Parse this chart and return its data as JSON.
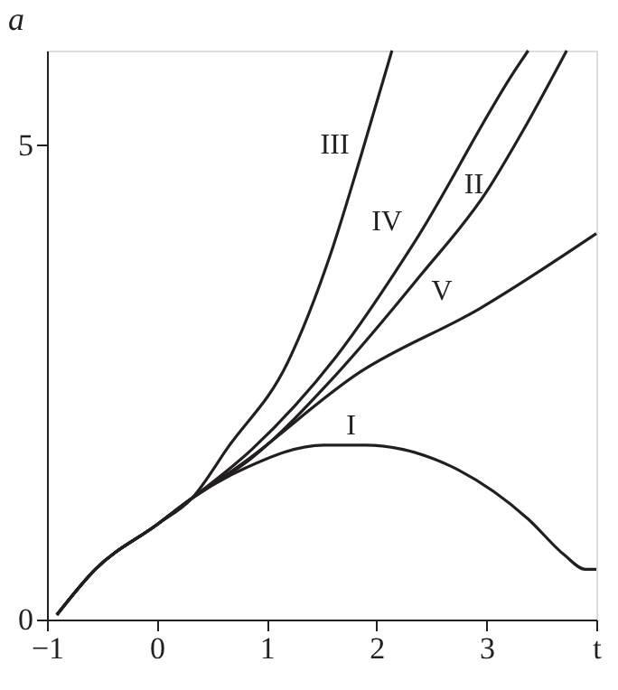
{
  "chart_data": {
    "type": "line",
    "ylabel": "a",
    "xlim": [
      -1,
      4
    ],
    "ylim": [
      0,
      6
    ],
    "xticks": [
      -1,
      0,
      1,
      2,
      3,
      {
        "value": 4,
        "label": "t"
      }
    ],
    "yticks": [
      0,
      5
    ],
    "grid": false,
    "line_style": "solid",
    "marker": "none",
    "series": [
      {
        "name": "I",
        "color": "#231f20",
        "x": [
          -0.91,
          -0.56,
          0,
          0.32,
          0.81,
          1.52,
          1.9,
          2.67,
          3.38,
          3.71,
          3.9,
          4.0
        ],
        "values": [
          0.05,
          0.53,
          1.0,
          1.28,
          1.6,
          1.84,
          1.84,
          1.62,
          1.06,
          0.68,
          0.53,
          0.53
        ]
      },
      {
        "name": "II",
        "color": "#231f20",
        "x": [
          -0.91,
          -0.56,
          0,
          0.32,
          0.86,
          1.63,
          2.4,
          3.0,
          3.33,
          3.73
        ],
        "values": [
          0.05,
          0.53,
          1.0,
          1.28,
          1.7,
          2.58,
          3.63,
          4.51,
          5.15,
          6.0
        ]
      },
      {
        "name": "III",
        "color": "#231f20",
        "x": [
          -0.91,
          -0.56,
          0,
          0.32,
          0.65,
          1.19,
          1.58,
          1.85,
          2.14
        ],
        "values": [
          0.05,
          0.53,
          1.0,
          1.28,
          1.82,
          2.71,
          3.85,
          4.86,
          6.0
        ]
      },
      {
        "name": "IV",
        "color": "#231f20",
        "x": [
          -0.91,
          -0.56,
          0,
          0.32,
          0.86,
          1.63,
          2.34,
          3.27,
          3.38
        ],
        "values": [
          0.05,
          0.53,
          1.0,
          1.28,
          1.79,
          2.77,
          3.97,
          5.81,
          6.0
        ]
      },
      {
        "name": "V",
        "color": "#231f20",
        "x": [
          -0.91,
          -0.56,
          0,
          0.32,
          0.76,
          1.85,
          2.94,
          4.0
        ],
        "values": [
          0.05,
          0.53,
          1.0,
          1.28,
          1.63,
          2.61,
          3.28,
          4.07
        ]
      }
    ]
  }
}
